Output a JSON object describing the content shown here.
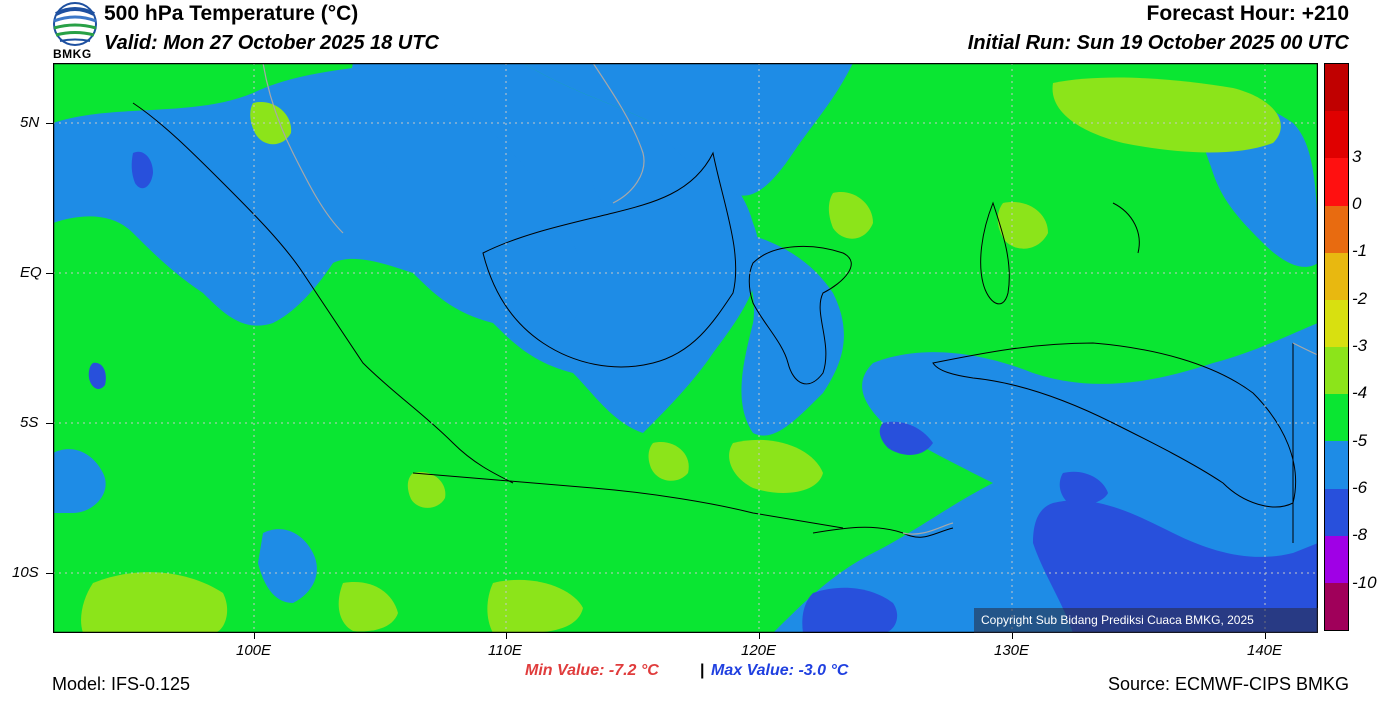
{
  "header": {
    "title": "500 hPa Temperature (°C)",
    "valid": "Valid: Mon 27 October 2025 18 UTC",
    "forecast_hour": "Forecast Hour: +210",
    "initial_run": "Initial Run: Sun 19 October 2025 00 UTC",
    "logo_text": "BMKG"
  },
  "map": {
    "lat_ticks": [
      "5N",
      "EQ",
      "5S",
      "10S"
    ],
    "lon_ticks": [
      "100E",
      "110E",
      "120E",
      "130E",
      "140E"
    ],
    "copyright": "Copyright Sub Bidang Prediksi Cuaca BMKG, 2025"
  },
  "colorbar": {
    "levels": [
      "3",
      "0",
      "-1",
      "-2",
      "-3",
      "-4",
      "-5",
      "-6",
      "-8",
      "-10"
    ],
    "colors": [
      "#c00000",
      "#e00000",
      "#ff1010",
      "#e86b10",
      "#e8b810",
      "#d8e010",
      "#8ce41a",
      "#0ae632",
      "#1e8ce6",
      "#2850dc",
      "#a000e6",
      "#a0005a"
    ]
  },
  "footer": {
    "model": "Model: IFS-0.125",
    "min_value": "Min Value: -7.2 °C",
    "separator": "|",
    "max_value": "Max Value: -3.0 °C",
    "source": "Source: ECMWF-CIPS BMKG"
  },
  "style": {
    "base_green": "#0ae632",
    "blue": "#1e8ce6",
    "dark_blue": "#2850dc",
    "lime": "#8ce41a",
    "min_color": "#e03c3c",
    "max_color": "#2040e0"
  }
}
